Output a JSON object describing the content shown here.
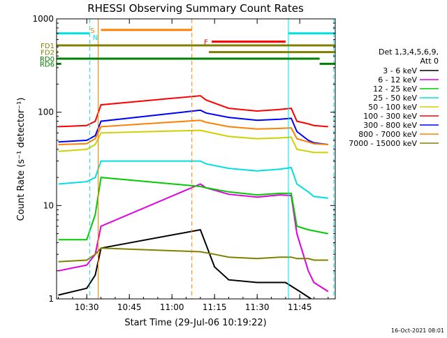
{
  "chart_data": {
    "type": "line",
    "title": "RHESSI Observing Summary Count Rates",
    "xlabel": "Start Time (29-Jul-06 10:19:22)",
    "ylabel": "Count Rate (s⁻¹ detector⁻¹)",
    "yscale": "log",
    "ylim": [
      1,
      1000
    ],
    "xlim": [
      "10:19:22",
      "11:57:30"
    ],
    "x_ticks": [
      "10:30",
      "10:45",
      "11:00",
      "11:15",
      "11:30",
      "11:45"
    ],
    "y_ticks": [
      "1",
      "10",
      "100",
      "1000"
    ],
    "grid": false,
    "legend_header": [
      "Det 1,3,4,5,6,9,",
      "Att 0"
    ],
    "legend_placement": "right",
    "timestamp": "16-Oct-2021 08:01",
    "series": [
      {
        "name": "3 - 6 keV",
        "color": "#000000",
        "x": [
          "10:20",
          "10:30",
          "10:33",
          "10:35",
          "11:10",
          "11:15",
          "11:20",
          "11:30",
          "11:40",
          "11:45",
          "11:49"
        ],
        "values": [
          1.1,
          1.3,
          1.8,
          3.5,
          5.5,
          2.2,
          1.6,
          1.5,
          1.5,
          1.2,
          1.0
        ]
      },
      {
        "name": "6 - 12 keV",
        "color": "#e000e0",
        "x": [
          "10:20",
          "10:30",
          "10:33",
          "10:35",
          "11:10",
          "11:12",
          "11:20",
          "11:30",
          "11:38",
          "11:42",
          "11:44",
          "11:48",
          "11:50",
          "11:55"
        ],
        "values": [
          2.0,
          2.3,
          3.0,
          6.0,
          17.0,
          15.5,
          13.2,
          12.3,
          13.0,
          12.8,
          5.0,
          2.0,
          1.5,
          1.2
        ]
      },
      {
        "name": "12 - 25 keV",
        "color": "#00cc00",
        "x": [
          "10:20",
          "10:27",
          "10:30",
          "10:33",
          "10:35",
          "11:10",
          "11:12",
          "11:20",
          "11:30",
          "11:38",
          "11:42",
          "11:44",
          "11:48",
          "11:55"
        ],
        "values": [
          4.3,
          4.3,
          4.3,
          8.0,
          20.0,
          16.0,
          15.5,
          14.0,
          13.0,
          13.5,
          13.5,
          6.0,
          5.5,
          5.0
        ]
      },
      {
        "name": "25 - 50 keV",
        "color": "#00e0e0",
        "x": [
          "10:20",
          "10:30",
          "10:33",
          "10:35",
          "11:10",
          "11:12",
          "11:20",
          "11:30",
          "11:38",
          "11:42",
          "11:44",
          "11:48",
          "11:50",
          "11:55"
        ],
        "values": [
          17.0,
          18.0,
          20.0,
          30.0,
          30.0,
          28.0,
          25.0,
          23.5,
          24.5,
          25.5,
          17.0,
          14.0,
          12.5,
          12.0
        ]
      },
      {
        "name": "50 - 100 keV",
        "color": "#d0d000",
        "x": [
          "10:20",
          "10:30",
          "10:33",
          "10:35",
          "11:10",
          "11:12",
          "11:20",
          "11:30",
          "11:38",
          "11:42",
          "11:44",
          "11:48",
          "11:50",
          "11:55"
        ],
        "values": [
          38.0,
          40.0,
          45.0,
          60.0,
          64.0,
          62.0,
          55.0,
          52.0,
          53.0,
          54.0,
          40.0,
          38.0,
          37.0,
          37.0
        ]
      },
      {
        "name": "100 - 300 keV",
        "color": "#ff0000",
        "x": [
          "10:20",
          "10:30",
          "10:33",
          "10:35",
          "11:10",
          "11:12",
          "11:20",
          "11:30",
          "11:38",
          "11:42",
          "11:44",
          "11:48",
          "11:50",
          "11:55"
        ],
        "values": [
          70.0,
          72.0,
          80.0,
          120.0,
          150.0,
          135.0,
          110.0,
          103.0,
          107.0,
          110.0,
          80.0,
          75.0,
          72.0,
          70.0
        ]
      },
      {
        "name": "300 - 800 keV",
        "color": "#0000ff",
        "x": [
          "10:20",
          "10:30",
          "10:33",
          "10:35",
          "11:10",
          "11:12",
          "11:20",
          "11:30",
          "11:38",
          "11:42",
          "11:44",
          "11:48",
          "11:50",
          "11:55"
        ],
        "values": [
          48.0,
          50.0,
          56.0,
          80.0,
          105.0,
          98.0,
          88.0,
          82.0,
          84.0,
          86.0,
          62.0,
          50.0,
          47.0,
          45.0
        ]
      },
      {
        "name": "800 - 7000 keV",
        "color": "#ff8000",
        "x": [
          "10:20",
          "10:30",
          "10:33",
          "10:35",
          "11:10",
          "11:12",
          "11:20",
          "11:30",
          "11:38",
          "11:42",
          "11:44",
          "11:48",
          "11:50",
          "11:55"
        ],
        "values": [
          45.0,
          46.0,
          52.0,
          70.0,
          82.0,
          78.0,
          70.0,
          66.0,
          67.0,
          68.0,
          52.0,
          48.0,
          46.0,
          45.0
        ]
      },
      {
        "name": "7000 - 15000 keV",
        "color": "#808000",
        "x": [
          "10:20",
          "10:30",
          "10:33",
          "10:35",
          "11:10",
          "11:15",
          "11:20",
          "11:30",
          "11:38",
          "11:42",
          "11:44",
          "11:48",
          "11:50",
          "11:55"
        ],
        "values": [
          2.5,
          2.6,
          3.0,
          3.5,
          3.2,
          3.0,
          2.8,
          2.7,
          2.8,
          2.8,
          2.7,
          2.7,
          2.6,
          2.6
        ]
      }
    ],
    "flags": [
      {
        "label": "",
        "color": "#00e0e0",
        "y": 700,
        "segments": [
          [
            "10:19:22",
            "10:31"
          ],
          [
            "11:41",
            "11:57:30"
          ]
        ]
      },
      {
        "label": "S",
        "color": "#ff8000",
        "y": 760,
        "text_at": "10:32",
        "segments": []
      },
      {
        "label": "N",
        "color": "#00e0e0",
        "y": 640,
        "text_at": "10:33",
        "segments": []
      },
      {
        "label": "",
        "color": "#ff8000",
        "y": 760,
        "segments": [
          [
            "10:35",
            "11:07"
          ]
        ]
      },
      {
        "label": "F",
        "color": "#ff0000",
        "y": 570,
        "text_at": "11:12",
        "segments": [
          [
            "11:14",
            "11:40"
          ]
        ]
      },
      {
        "label": "FD1",
        "color": "#808000",
        "y": 520,
        "segments": [
          [
            "10:19:22",
            "11:57:30"
          ]
        ]
      },
      {
        "label": "FD2",
        "color": "#808000",
        "y": 440,
        "segments": [
          [
            "10:19:22",
            "10:20"
          ],
          [
            "11:13",
            "11:57:30"
          ]
        ]
      },
      {
        "label": "RD0",
        "color": "#008000",
        "y": 375,
        "segments": [
          [
            "10:19:22",
            "11:52"
          ]
        ]
      },
      {
        "label": "RD6",
        "color": "#008000",
        "y": 330,
        "segments": [
          [
            "10:19:22",
            "10:21"
          ],
          [
            "11:52",
            "11:57:30"
          ]
        ]
      }
    ],
    "markers": [
      {
        "x": "10:31",
        "color": "#00e0e0",
        "style": "dashed"
      },
      {
        "x": "10:34",
        "color": "#ff8000",
        "style": "solid"
      },
      {
        "x": "11:07",
        "color": "#ff8000",
        "style": "dashed"
      },
      {
        "x": "11:41",
        "color": "#00e0e0",
        "style": "solid"
      },
      {
        "x": "11:57:00",
        "color": "#00e0e0",
        "style": "dashed"
      }
    ]
  }
}
